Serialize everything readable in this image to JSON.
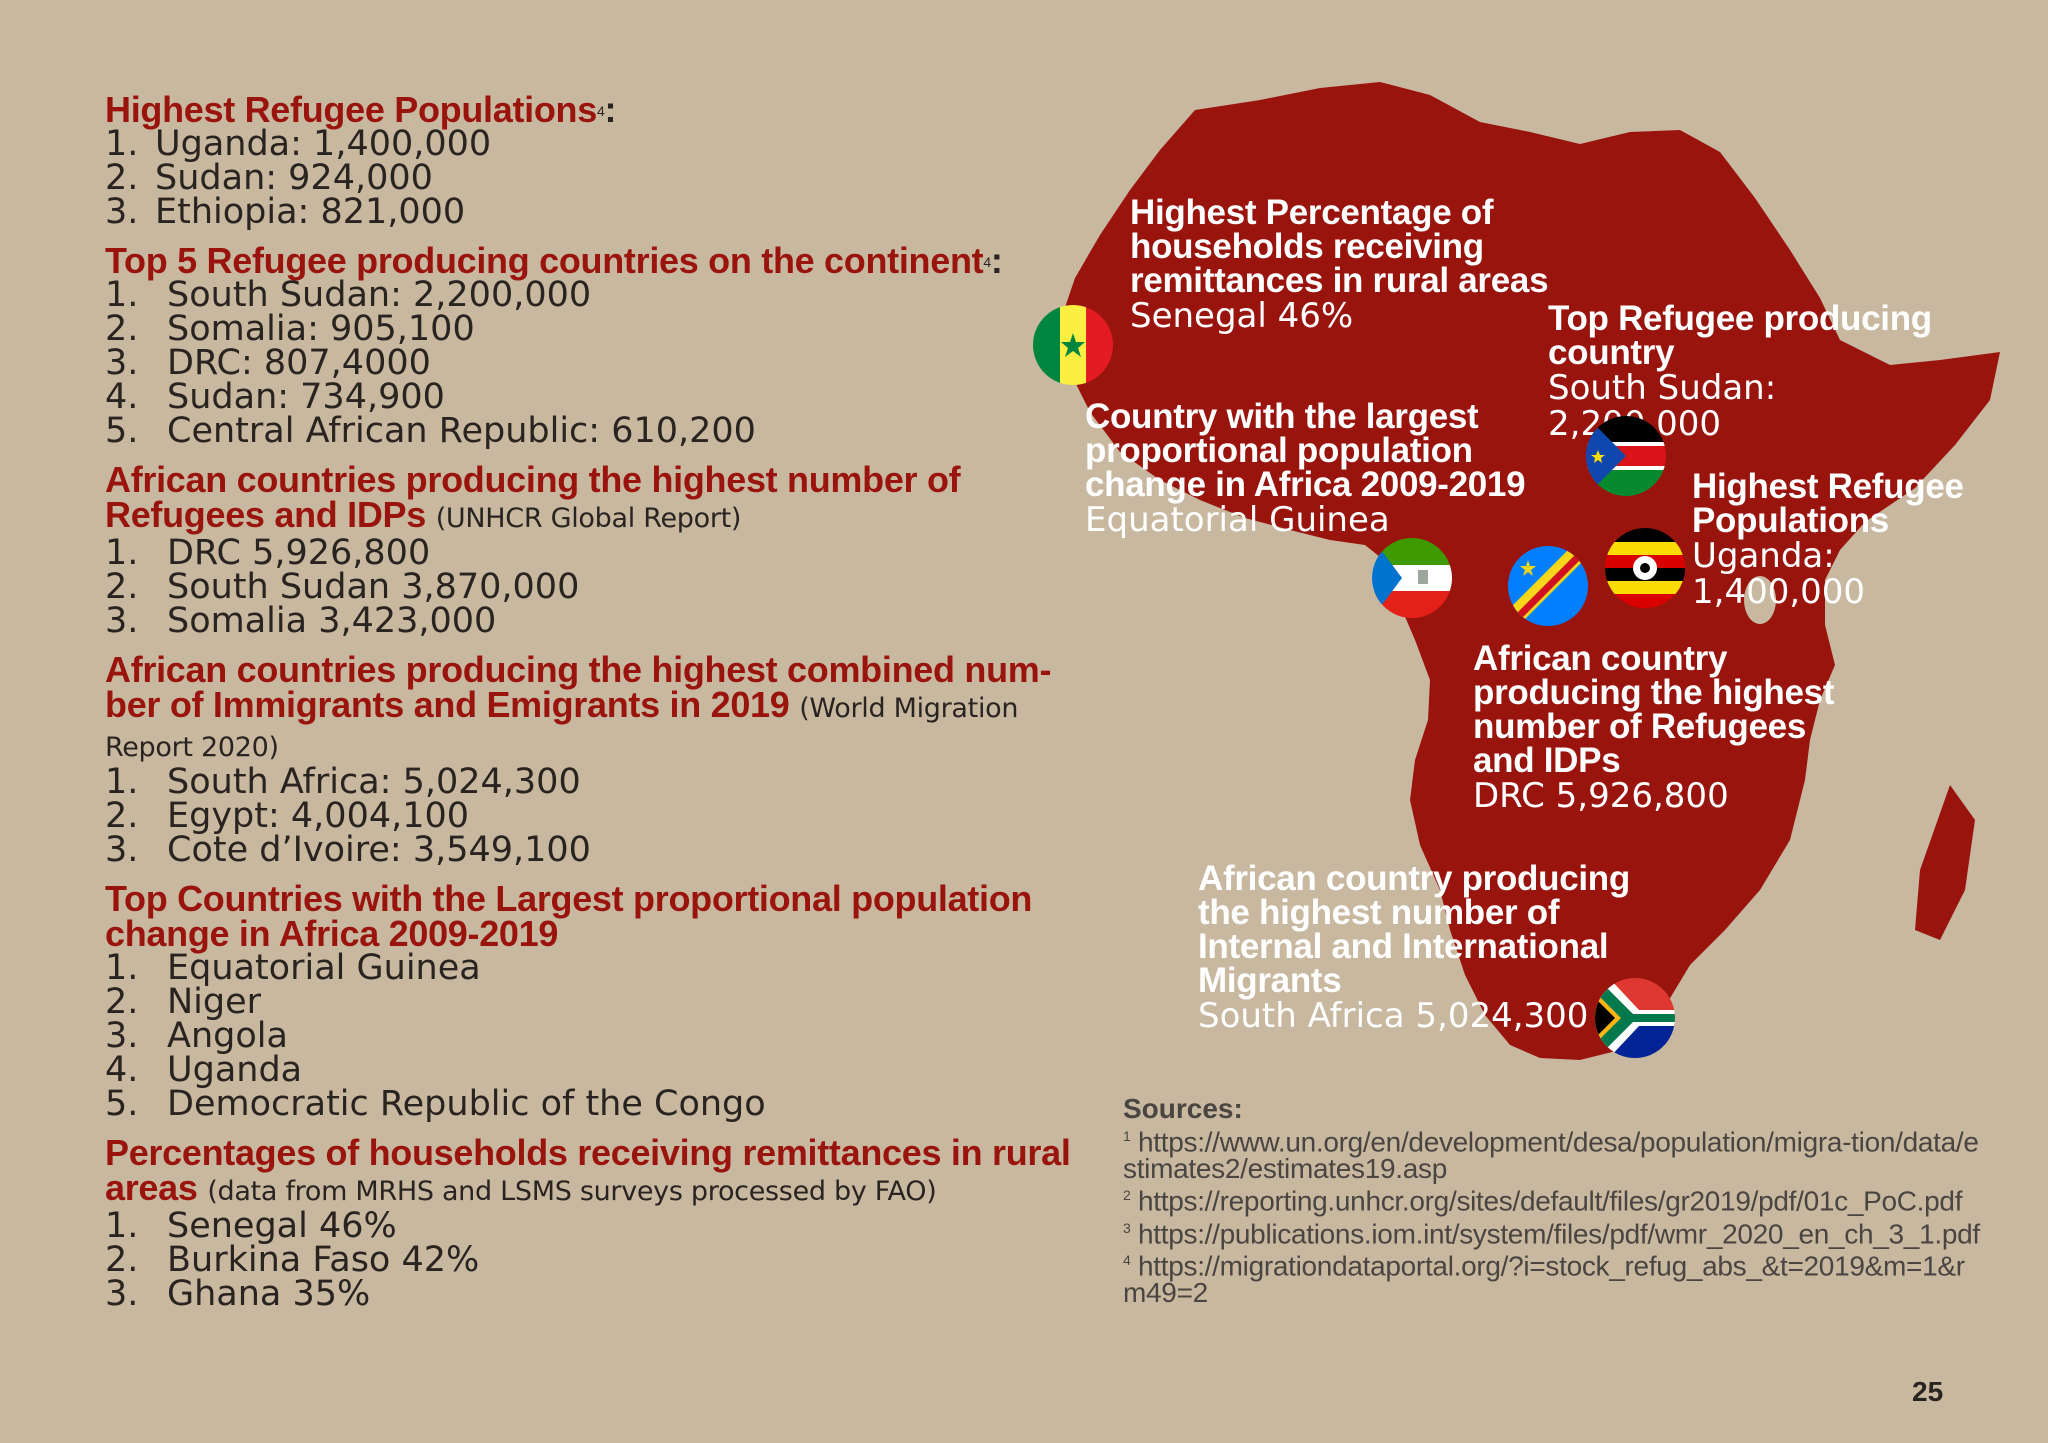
{
  "sections": [
    {
      "title": "Highest Refugee Populations",
      "sup": "4",
      "colon": ":",
      "note": "",
      "items": [
        {
          "n": "1.",
          "text": "Uganda: 1,400,000"
        },
        {
          "n": "2.",
          "text": "Sudan: 924,000"
        },
        {
          "n": "3.",
          "text": "Ethiopia: 821,000"
        }
      ]
    },
    {
      "title": "Top 5 Refugee producing countries on the continent",
      "sup": "4",
      "colon": ":",
      "note": "",
      "items": [
        {
          "n": "1.",
          "text": "South Sudan: 2,200,000"
        },
        {
          "n": "2.",
          "text": "Somalia: 905,100"
        },
        {
          "n": "3.",
          "text": "DRC: 807,4000"
        },
        {
          "n": "4.",
          "text": "Sudan: 734,900"
        },
        {
          "n": "5.",
          "text": "Central African Republic: 610,200"
        }
      ]
    },
    {
      "title": "African countries producing the highest number of Refugees and IDPs",
      "sup": "",
      "colon": "",
      "note": "(UNHCR Global Report)",
      "items": [
        {
          "n": "1.",
          "text": "DRC 5,926,800"
        },
        {
          "n": "2.",
          "text": "South Sudan 3,870,000"
        },
        {
          "n": "3.",
          "text": "Somalia 3,423,000"
        }
      ]
    },
    {
      "title": "African countries producing the highest combined num-ber of Immigrants and Emigrants in 2019",
      "sup": "",
      "colon": "",
      "note": "(World Migration Report 2020)",
      "items": [
        {
          "n": "1.",
          "text": "South Africa: 5,024,300"
        },
        {
          "n": "2.",
          "text": "Egypt: 4,004,100"
        },
        {
          "n": "3.",
          "text": "Cote d’Ivoire: 3,549,100"
        }
      ]
    },
    {
      "title": "Top Countries with the Largest proportional population change in Africa 2009-2019",
      "sup": "",
      "colon": "",
      "note": "",
      "items": [
        {
          "n": "1.",
          "text": "Equatorial Guinea"
        },
        {
          "n": "2.",
          "text": "Niger"
        },
        {
          "n": "3.",
          "text": "Angola"
        },
        {
          "n": "4.",
          "text": "Uganda"
        },
        {
          "n": "5.",
          "text": "Democratic Republic of the Congo"
        }
      ]
    },
    {
      "title": "Percentages of households receiving remittances in rural areas",
      "sup": "",
      "colon": "",
      "note": "(data from MRHS and LSMS surveys processed by FAO)",
      "items": [
        {
          "n": "1.",
          "text": "Senegal 46%"
        },
        {
          "n": "2.",
          "text": "Burkina Faso 42%"
        },
        {
          "n": "3.",
          "text": "Ghana 35%"
        }
      ]
    }
  ],
  "callouts": {
    "senegal": {
      "title": "Highest Percentage of households receiving remittances in rural areas",
      "value": "Senegal 46%"
    },
    "south_sudan": {
      "title": "Top Refugee producing country",
      "value": "South Sudan: 2,200,000"
    },
    "eq_guinea": {
      "title": "Country with the largest proportional population change in Africa 2009-2019",
      "value": "Equatorial Guinea"
    },
    "uganda": {
      "title": "Highest Refugee Populations",
      "value": "Uganda: 1,400,000"
    },
    "drc": {
      "title": "African country producing the highest number of Refugees and IDPs",
      "value": "DRC 5,926,800"
    },
    "south_africa": {
      "title": "African country producing the highest number of Internal and International Migrants",
      "value": "South Africa 5,024,300"
    }
  },
  "flags": [
    "senegal-flag-icon",
    "south-sudan-flag-icon",
    "equatorial-guinea-flag-icon",
    "drc-flag-icon",
    "uganda-flag-icon",
    "south-africa-flag-icon"
  ],
  "sources": {
    "title": "Sources:",
    "items": [
      {
        "n": "1",
        "text": "https://www.un.org/en/development/desa/population/migra-tion/data/estimates2/estimates19.asp"
      },
      {
        "n": "2",
        "text": "https://reporting.unhcr.org/sites/default/files/gr2019/pdf/01c_PoC.pdf"
      },
      {
        "n": "3",
        "text": "https://publications.iom.int/system/files/pdf/wmr_2020_en_ch_3_1.pdf"
      },
      {
        "n": "4",
        "text": "https://migrationdataportal.org/?i=stock_refug_abs_&t=2019&m=1&rm49=2"
      }
    ]
  },
  "page_number": "25",
  "colors": {
    "background": "#c9b8a0",
    "accent": "#9a140e",
    "map": "#9a140e"
  }
}
